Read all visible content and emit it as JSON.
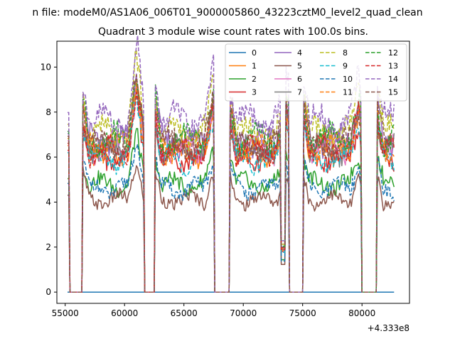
{
  "chart_data": {
    "type": "line",
    "suptitle": "n file: modeM0/AS1A06_006T01_9000005860_43223cztM0_level2_quad_clean",
    "title": "Quadrant 3 module wise count rates with 100.0s bins.",
    "xlabel": "",
    "ylabel": "",
    "x_offset_label": "+4.333e8",
    "x_ticks": [
      55000,
      60000,
      65000,
      70000,
      75000,
      80000
    ],
    "y_ticks": [
      0,
      2,
      4,
      6,
      8,
      10
    ],
    "xlim": [
      54300,
      84000
    ],
    "ylim": [
      -0.5,
      11.15
    ],
    "grid": false,
    "legend_position": "upper right",
    "legend_columns": 4,
    "x_range": [
      55200,
      82700
    ],
    "bin_seconds": 100,
    "active_intervals": [
      [
        55200,
        55300
      ],
      [
        56500,
        61600
      ],
      [
        62600,
        67500
      ],
      [
        68900,
        73800
      ],
      [
        75100,
        79900
      ],
      [
        81300,
        82700
      ]
    ],
    "peaks": [
      [
        61000,
        1.45
      ],
      [
        67450,
        1.3
      ],
      [
        73550,
        1.3
      ],
      [
        79700,
        1.25
      ]
    ],
    "dip": [
      73200,
      73500
    ],
    "series": [
      {
        "name": "0",
        "color": "#1f77b4",
        "style": "solid",
        "level": 0.0
      },
      {
        "name": "1",
        "color": "#ff7f0e",
        "style": "solid",
        "level": 6.2
      },
      {
        "name": "2",
        "color": "#2ca02c",
        "style": "solid",
        "level": 4.8
      },
      {
        "name": "3",
        "color": "#d62728",
        "style": "solid",
        "level": 6.0
      },
      {
        "name": "4",
        "color": "#9467bd",
        "style": "solid",
        "level": 6.7
      },
      {
        "name": "5",
        "color": "#8c564b",
        "style": "solid",
        "level": 4.1
      },
      {
        "name": "6",
        "color": "#e377c2",
        "style": "solid",
        "level": 6.4
      },
      {
        "name": "7",
        "color": "#7f7f7f",
        "style": "solid",
        "level": 6.3
      },
      {
        "name": "8",
        "color": "#bcbd22",
        "style": "dashed",
        "level": 7.1
      },
      {
        "name": "9",
        "color": "#17becf",
        "style": "dashed",
        "level": 5.9
      },
      {
        "name": "10",
        "color": "#1f77b4",
        "style": "dashed",
        "level": 4.6
      },
      {
        "name": "11",
        "color": "#ff7f0e",
        "style": "dashed",
        "level": 6.5
      },
      {
        "name": "12",
        "color": "#2ca02c",
        "style": "dashed",
        "level": 6.8
      },
      {
        "name": "13",
        "color": "#d62728",
        "style": "dashed",
        "level": 6.3
      },
      {
        "name": "14",
        "color": "#9467bd",
        "style": "dashed",
        "level": 7.6
      },
      {
        "name": "15",
        "color": "#8c564b",
        "style": "dashed",
        "level": 6.6
      }
    ]
  }
}
